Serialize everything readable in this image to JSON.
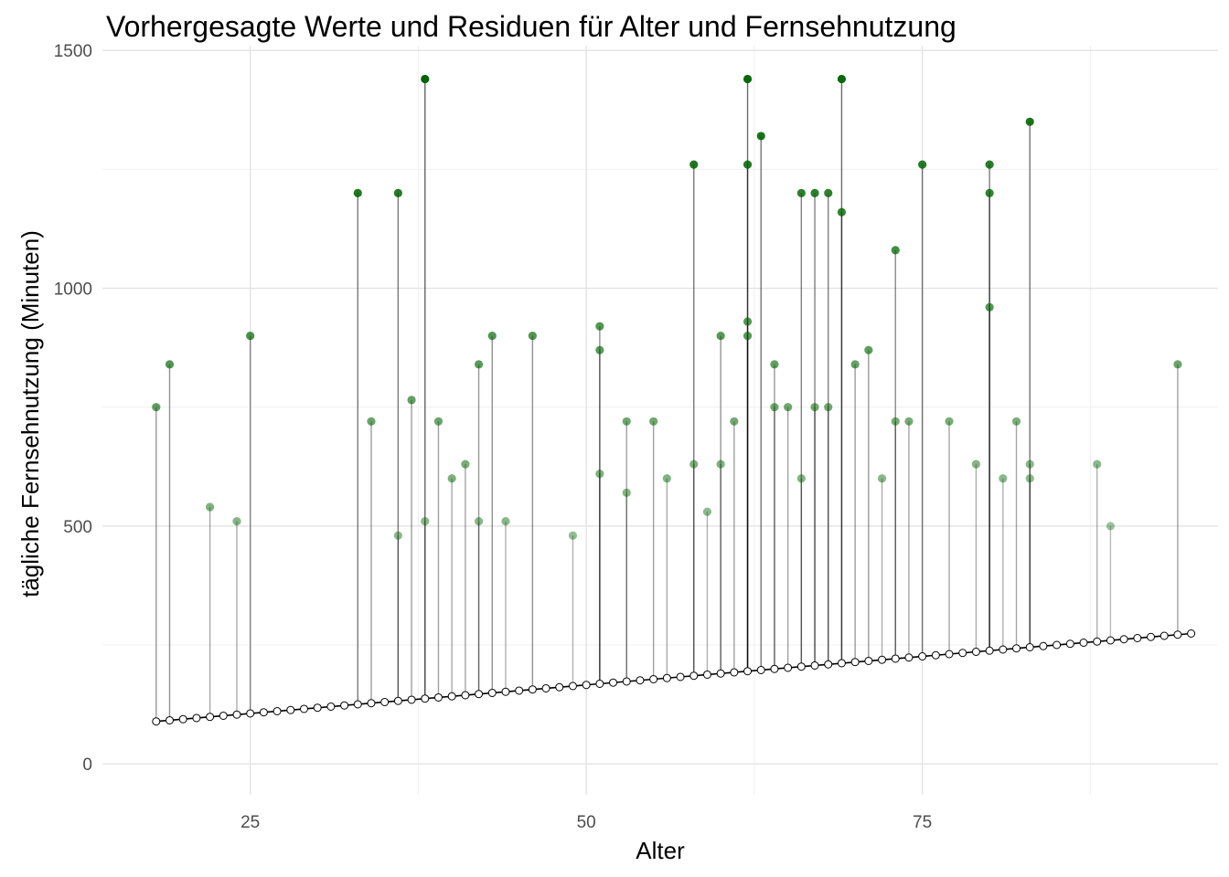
{
  "chart_data": {
    "type": "scatter",
    "title": "Vorhergesagte Werte und Residuen für Alter und Fernsehnutzung",
    "xlabel": "Alter",
    "ylabel": "tägliche Fernsehnutzung (Minuten)",
    "xlim": [
      14,
      97
    ],
    "ylim": [
      -65,
      1510
    ],
    "x_ticks": [
      25,
      50,
      75
    ],
    "y_ticks": [
      0,
      500,
      1000,
      1500
    ],
    "grid": true,
    "legend": "none",
    "regression": {
      "intercept": 46.0,
      "slope": 2.4,
      "x_range": [
        18,
        95
      ]
    },
    "colors": {
      "high_residual": "#006400",
      "low_residual": "#8b5a4a",
      "line": "#000000"
    },
    "series": [
      {
        "x": [
          18,
          19,
          22,
          24,
          25,
          33,
          34,
          36,
          37,
          38,
          39,
          40,
          41,
          42,
          43,
          46,
          51,
          53,
          55,
          58,
          60,
          61,
          62,
          63,
          64,
          65,
          66,
          67,
          68,
          69,
          70,
          71,
          72,
          73,
          74,
          75,
          77,
          79,
          80,
          81,
          82,
          83,
          88,
          89,
          94,
          38,
          51,
          59,
          62,
          66,
          68,
          73,
          80,
          83,
          51,
          62,
          64,
          67,
          80,
          83,
          56,
          62,
          69,
          36,
          44,
          53,
          58,
          49,
          42,
          60
        ],
        "y": [
          750,
          840,
          540,
          510,
          900,
          1200,
          720,
          1200,
          765,
          1440,
          720,
          600,
          630,
          840,
          900,
          900,
          920,
          720,
          720,
          1260,
          900,
          720,
          1440,
          1320,
          840,
          750,
          1200,
          1200,
          1200,
          1440,
          840,
          870,
          600,
          1080,
          720,
          1260,
          720,
          630,
          1260,
          600,
          720,
          1350,
          630,
          500,
          840,
          510,
          870,
          530,
          1260,
          600,
          750,
          720,
          1200,
          630,
          610,
          930,
          750,
          750,
          960,
          600,
          600,
          900,
          1160,
          480,
          510,
          570,
          630,
          480,
          510,
          630
        ]
      }
    ]
  }
}
